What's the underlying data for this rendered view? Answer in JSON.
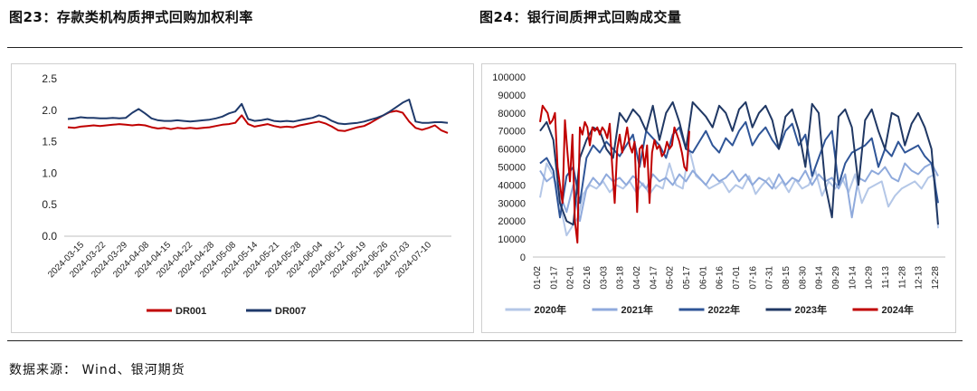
{
  "header": {
    "left_title": "图23：存款类机构质押式回购加权利率",
    "right_title": "图24：银行间质押式回购成交量"
  },
  "footer": {
    "source": "数据来源： Wind、银河期货"
  },
  "colors": {
    "red": "#c00000",
    "navy": "#1f3a6b",
    "c2020": "#b4c7e7",
    "c2021": "#8faadc",
    "c2022": "#2f5597",
    "c2023": "#203864",
    "c2024": "#c00000"
  },
  "chart_data": [
    {
      "type": "line",
      "ylim": [
        0,
        2.5
      ],
      "yticks": [
        "0.0",
        "0.5",
        "1.0",
        "1.5",
        "2.0",
        "2.5"
      ],
      "ytick_values": [
        0,
        0.5,
        1.0,
        1.5,
        2.0,
        2.5
      ],
      "x_tick_labels": [
        "2024-03-15",
        "2024-03-22",
        "2024-03-29",
        "2024-04-08",
        "2024-04-15",
        "2024-04-22",
        "2024-04-28",
        "2024-05-08",
        "2024-05-14",
        "2024-05-21",
        "2024-05-28",
        "2024-06-04",
        "2024-06-12",
        "2024-06-19",
        "2024-06-26",
        "2024-07-03",
        "2024-07-10"
      ],
      "series": [
        {
          "name": "DR001",
          "color": "#c00000",
          "values": [
            1.73,
            1.72,
            1.74,
            1.75,
            1.76,
            1.75,
            1.76,
            1.77,
            1.78,
            1.77,
            1.76,
            1.77,
            1.76,
            1.73,
            1.71,
            1.72,
            1.7,
            1.72,
            1.71,
            1.72,
            1.71,
            1.72,
            1.73,
            1.75,
            1.77,
            1.78,
            1.8,
            1.92,
            1.78,
            1.74,
            1.76,
            1.78,
            1.75,
            1.73,
            1.74,
            1.73,
            1.76,
            1.78,
            1.8,
            1.82,
            1.79,
            1.74,
            1.68,
            1.67,
            1.7,
            1.73,
            1.75,
            1.8,
            1.86,
            1.92,
            1.97,
            1.99,
            1.96,
            1.82,
            1.72,
            1.69,
            1.72,
            1.76,
            1.68,
            1.64
          ]
        },
        {
          "name": "DR007",
          "color": "#1f3a6b",
          "values": [
            1.86,
            1.87,
            1.89,
            1.88,
            1.88,
            1.87,
            1.87,
            1.88,
            1.87,
            1.88,
            1.96,
            2.02,
            1.95,
            1.87,
            1.84,
            1.83,
            1.83,
            1.84,
            1.83,
            1.82,
            1.83,
            1.84,
            1.85,
            1.87,
            1.9,
            1.95,
            1.98,
            2.1,
            1.86,
            1.83,
            1.84,
            1.86,
            1.83,
            1.82,
            1.83,
            1.82,
            1.84,
            1.86,
            1.88,
            1.92,
            1.89,
            1.83,
            1.79,
            1.78,
            1.79,
            1.8,
            1.82,
            1.85,
            1.88,
            1.92,
            1.98,
            2.05,
            2.12,
            2.17,
            1.82,
            1.8,
            1.8,
            1.81,
            1.81,
            1.8
          ]
        }
      ]
    },
    {
      "type": "line",
      "ylim": [
        0,
        100000
      ],
      "yticks": [
        "0",
        "10000",
        "20000",
        "30000",
        "40000",
        "50000",
        "60000",
        "70000",
        "80000",
        "90000",
        "100000"
      ],
      "ytick_values": [
        0,
        10000,
        20000,
        30000,
        40000,
        50000,
        60000,
        70000,
        80000,
        90000,
        100000
      ],
      "x_tick_labels": [
        "01-02",
        "01-17",
        "02-01",
        "02-16",
        "03-03",
        "03-18",
        "04-02",
        "04-17",
        "05-02",
        "05-17",
        "06-01",
        "06-16",
        "07-01",
        "07-16",
        "07-31",
        "08-15",
        "08-30",
        "09-14",
        "09-29",
        "10-14",
        "10-29",
        "11-13",
        "11-28",
        "12-13",
        "12-28"
      ],
      "x_range": [
        0,
        24
      ],
      "series": [
        {
          "name": "2020年",
          "color": "#b4c7e7",
          "x": [
            0,
            0.4,
            0.8,
            1.2,
            1.6,
            2.0,
            2.3,
            2.6,
            3.0,
            3.4,
            3.8,
            4.2,
            4.6,
            5.0,
            5.4,
            5.8,
            6.2,
            6.6,
            7.0,
            7.4,
            7.8,
            8.2,
            8.6,
            9.0,
            9.4,
            9.8,
            10.2,
            10.6,
            11.0,
            11.4,
            11.8,
            12.2,
            12.6,
            13.0,
            13.4,
            13.8,
            14.2,
            14.6,
            15.0,
            15.4,
            15.8,
            16.2,
            16.6,
            17.0,
            17.4,
            17.8,
            18.2,
            18.6,
            19.0,
            19.4,
            19.8,
            20.2,
            20.6,
            21.0,
            21.4,
            21.8,
            22.2,
            22.6,
            23.0,
            23.4,
            23.8,
            24.0
          ],
          "values": [
            33000,
            52000,
            45000,
            30000,
            12000,
            18000,
            22000,
            35000,
            40000,
            38000,
            42000,
            36000,
            40000,
            38000,
            42000,
            36000,
            41000,
            35000,
            40000,
            38000,
            52000,
            40000,
            38000,
            60000,
            45000,
            42000,
            38000,
            40000,
            42000,
            36000,
            40000,
            38000,
            45000,
            35000,
            40000,
            44000,
            38000,
            42000,
            36000,
            43000,
            38000,
            40000,
            48000,
            34000,
            42000,
            38000,
            44000,
            36000,
            46000,
            30000,
            38000,
            40000,
            42000,
            28000,
            34000,
            38000,
            40000,
            42000,
            38000,
            44000,
            46000,
            16000
          ]
        },
        {
          "name": "2021年",
          "color": "#8faadc",
          "x": [
            0,
            0.4,
            0.8,
            1.2,
            1.6,
            2.0,
            2.4,
            2.8,
            3.2,
            3.6,
            4.0,
            4.4,
            4.8,
            5.2,
            5.6,
            6.0,
            6.4,
            6.8,
            7.2,
            7.6,
            8.0,
            8.4,
            8.8,
            9.2,
            9.6,
            10.0,
            10.4,
            10.8,
            11.2,
            11.6,
            12.0,
            12.4,
            12.8,
            13.2,
            13.6,
            14.0,
            14.4,
            14.8,
            15.2,
            15.6,
            16.0,
            16.4,
            16.8,
            17.2,
            17.6,
            18.0,
            18.4,
            18.8,
            19.2,
            19.6,
            20.0,
            20.4,
            20.8,
            21.2,
            21.6,
            22.0,
            22.4,
            22.8,
            23.2,
            23.6,
            24.0
          ],
          "values": [
            48000,
            42000,
            45000,
            35000,
            25000,
            40000,
            20000,
            38000,
            44000,
            40000,
            46000,
            42000,
            44000,
            40000,
            45000,
            42000,
            38000,
            46000,
            42000,
            44000,
            40000,
            46000,
            42000,
            48000,
            44000,
            40000,
            46000,
            42000,
            44000,
            48000,
            42000,
            46000,
            40000,
            44000,
            42000,
            38000,
            46000,
            40000,
            44000,
            42000,
            48000,
            40000,
            46000,
            42000,
            44000,
            38000,
            46000,
            22000,
            44000,
            42000,
            48000,
            46000,
            50000,
            44000,
            42000,
            52000,
            48000,
            46000,
            50000,
            52000,
            45000
          ]
        },
        {
          "name": "2022年",
          "color": "#2f5597",
          "x": [
            0,
            0.4,
            0.8,
            1.2,
            1.6,
            2.0,
            2.4,
            2.8,
            3.2,
            3.6,
            4.0,
            4.4,
            4.8,
            5.2,
            5.6,
            6.0,
            6.4,
            6.8,
            7.2,
            7.6,
            8.0,
            8.4,
            8.8,
            9.2,
            9.6,
            10.0,
            10.4,
            10.8,
            11.2,
            11.6,
            12.0,
            12.4,
            12.8,
            13.2,
            13.6,
            14.0,
            14.4,
            14.8,
            15.2,
            15.6,
            16.0,
            16.4,
            16.8,
            17.2,
            17.6,
            18.0,
            18.4,
            18.8,
            19.2,
            19.6,
            20.0,
            20.4,
            20.8,
            21.2,
            21.6,
            22.0,
            22.4,
            22.8,
            23.2,
            23.6,
            24.0
          ],
          "values": [
            52000,
            55000,
            48000,
            22000,
            45000,
            50000,
            30000,
            55000,
            62000,
            58000,
            64000,
            60000,
            56000,
            62000,
            68000,
            50000,
            70000,
            66000,
            62000,
            55000,
            68000,
            72000,
            60000,
            58000,
            64000,
            70000,
            62000,
            58000,
            66000,
            62000,
            70000,
            75000,
            62000,
            68000,
            72000,
            65000,
            60000,
            70000,
            74000,
            62000,
            68000,
            45000,
            55000,
            65000,
            70000,
            40000,
            52000,
            58000,
            60000,
            62000,
            66000,
            50000,
            60000,
            56000,
            64000,
            58000,
            60000,
            62000,
            56000,
            52000,
            30000
          ]
        },
        {
          "name": "2023年",
          "color": "#203864",
          "x": [
            0,
            0.4,
            0.8,
            1.2,
            1.6,
            2.0,
            2.4,
            2.8,
            3.2,
            3.6,
            4.0,
            4.4,
            4.8,
            5.2,
            5.6,
            6.0,
            6.4,
            6.8,
            7.2,
            7.6,
            8.0,
            8.4,
            8.8,
            9.2,
            9.6,
            10.0,
            10.4,
            10.8,
            11.2,
            11.6,
            12.0,
            12.4,
            12.8,
            13.2,
            13.6,
            14.0,
            14.4,
            14.8,
            15.2,
            15.6,
            16.0,
            16.4,
            16.8,
            17.2,
            17.6,
            18.0,
            18.4,
            18.8,
            19.2,
            19.6,
            20.0,
            20.4,
            20.8,
            21.2,
            21.6,
            22.0,
            22.4,
            22.8,
            23.2,
            23.6,
            24.0
          ],
          "values": [
            70000,
            75000,
            65000,
            30000,
            20000,
            18000,
            55000,
            65000,
            72000,
            70000,
            60000,
            55000,
            80000,
            75000,
            82000,
            78000,
            70000,
            84000,
            65000,
            80000,
            86000,
            75000,
            60000,
            86000,
            82000,
            78000,
            72000,
            84000,
            80000,
            70000,
            82000,
            86000,
            72000,
            80000,
            84000,
            76000,
            60000,
            78000,
            82000,
            70000,
            50000,
            85000,
            80000,
            40000,
            22000,
            78000,
            82000,
            72000,
            40000,
            76000,
            82000,
            70000,
            60000,
            80000,
            78000,
            62000,
            74000,
            80000,
            72000,
            60000,
            18000
          ]
        },
        {
          "name": "2024年",
          "color": "#c00000",
          "x": [
            0,
            0.15,
            0.3,
            0.45,
            0.6,
            0.75,
            0.9,
            1.05,
            1.2,
            1.35,
            1.5,
            1.65,
            1.8,
            1.95,
            2.1,
            2.25,
            2.4,
            2.55,
            2.7,
            2.85,
            3.0,
            3.15,
            3.3,
            3.45,
            3.6,
            3.75,
            3.9,
            4.05,
            4.2,
            4.35,
            4.5,
            4.65,
            4.8,
            4.95,
            5.1,
            5.25,
            5.4,
            5.55,
            5.7,
            5.85,
            6.0,
            6.15,
            6.3,
            6.45,
            6.6,
            6.75,
            6.9,
            7.05,
            7.2,
            7.35,
            7.5,
            7.65,
            7.8,
            7.95,
            8.1,
            8.25,
            8.4,
            8.55,
            8.7,
            8.85,
            9.0
          ],
          "values": [
            75000,
            84000,
            82000,
            80000,
            74000,
            76000,
            80000,
            50000,
            40000,
            30000,
            76000,
            58000,
            42000,
            68000,
            20000,
            8000,
            72000,
            68000,
            75000,
            72000,
            62000,
            72000,
            70000,
            72000,
            68000,
            72000,
            70000,
            66000,
            74000,
            50000,
            30000,
            60000,
            68000,
            58000,
            64000,
            72000,
            62000,
            58000,
            64000,
            25000,
            60000,
            62000,
            50000,
            62000,
            30000,
            58000,
            65000,
            60000,
            62000,
            56000,
            58000,
            64000,
            60000,
            62000,
            72000,
            68000,
            64000,
            58000,
            50000,
            48000,
            70000
          ]
        }
      ]
    }
  ]
}
